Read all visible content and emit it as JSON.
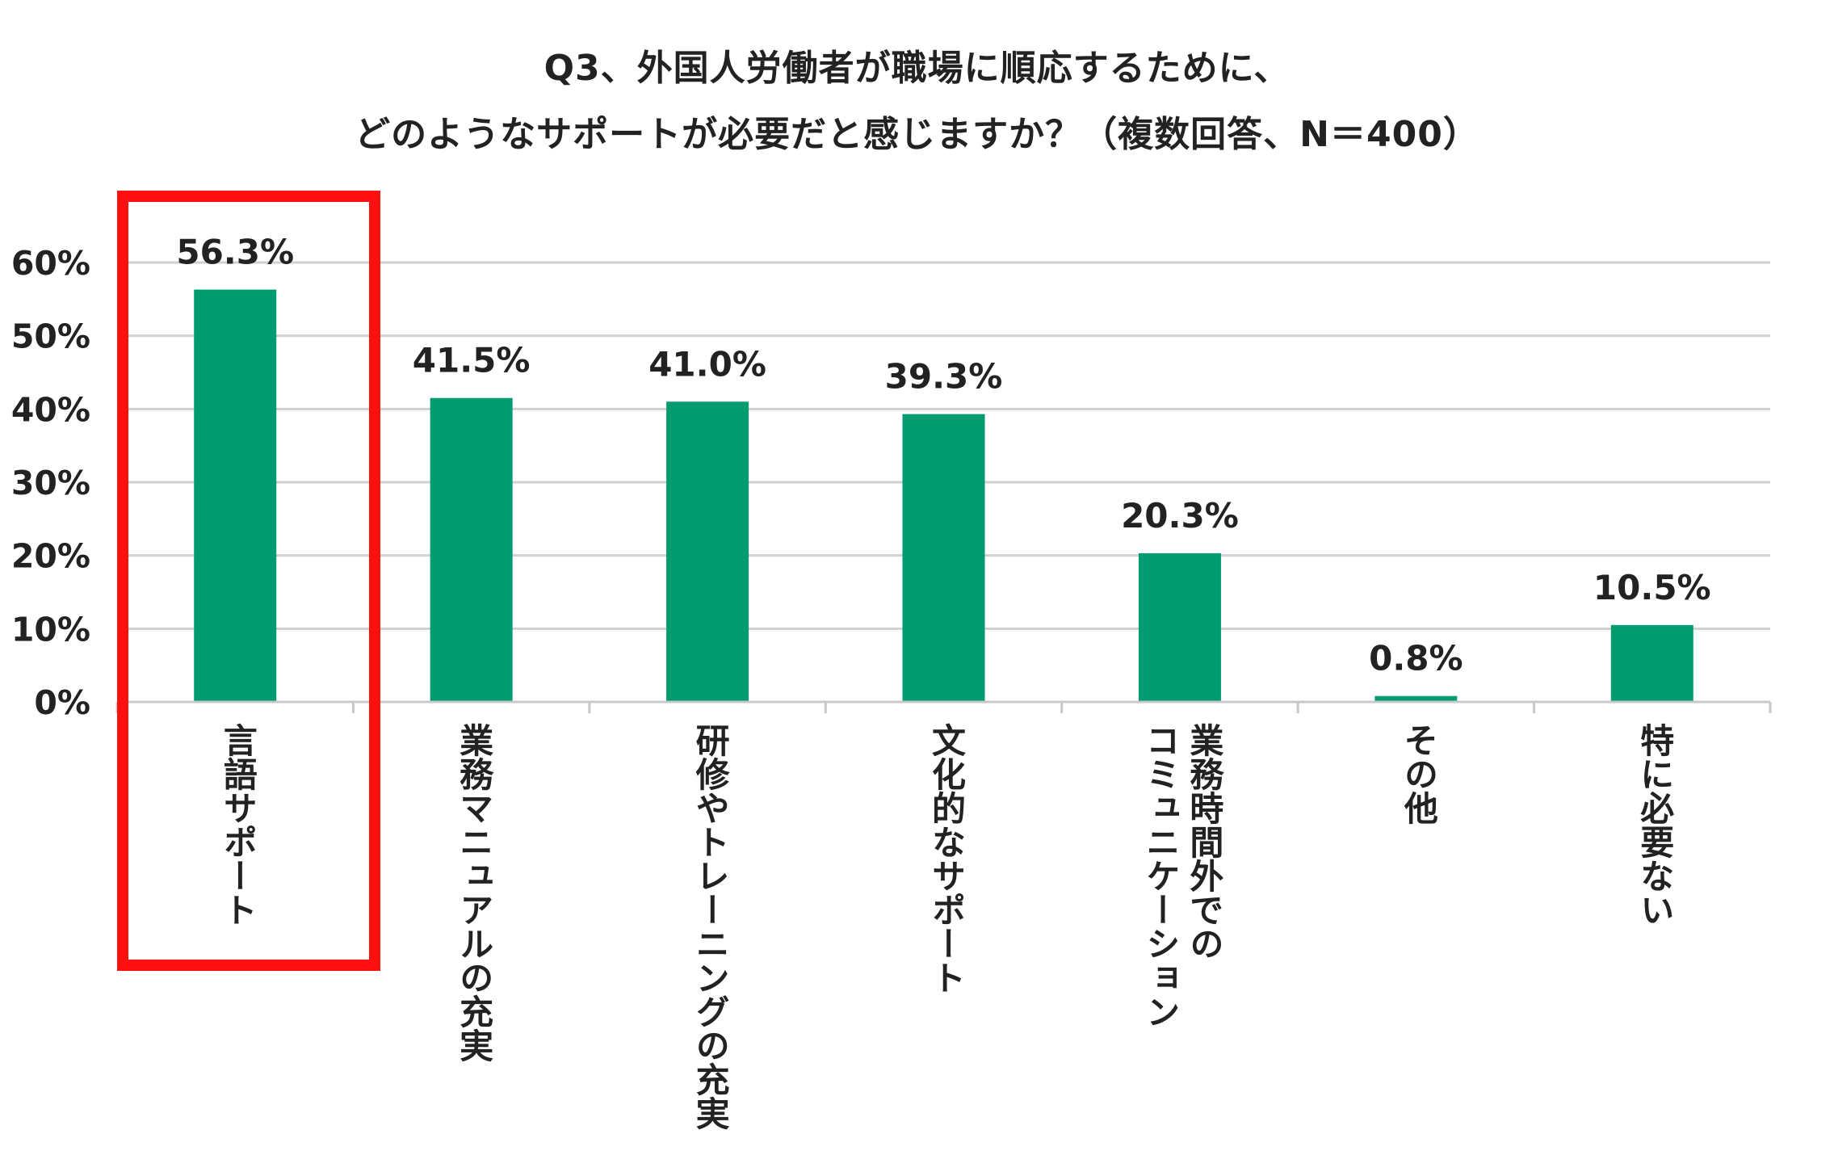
{
  "title_line1": "Q3、外国人労働者が職場に順応するために、",
  "title_line2": "どのようなサポートが必要だと感じますか？（複数回答、N＝400）",
  "chart_data": {
    "type": "bar",
    "title": "Q3、外国人労働者が職場に順応するために、どのようなサポートが必要だと感じますか？（複数回答、N＝400）",
    "categories": [
      "言語サポート",
      "業務マニュアルの充実",
      "研修やトレーニングの充実",
      "文化的なサポート",
      "業務時間外でのコミュニケーション",
      "その他",
      "特に必要ない"
    ],
    "category_columns": [
      [
        "言語サポート"
      ],
      [
        "業務マニュアルの充実"
      ],
      [
        "研修やトレーニングの充実"
      ],
      [
        "文化的なサポート"
      ],
      [
        "業務時間外での",
        "コミュニケーション"
      ],
      [
        "その他"
      ],
      [
        "特に必要ない"
      ]
    ],
    "values": [
      56.3,
      41.5,
      41.0,
      39.3,
      20.3,
      0.8,
      10.5
    ],
    "value_labels": [
      "56.3%",
      "41.5%",
      "41.0%",
      "39.3%",
      "20.3%",
      "0.8%",
      "10.5%"
    ],
    "ylim": [
      0,
      60
    ],
    "yticks": [
      0,
      10,
      20,
      30,
      40,
      50,
      60
    ],
    "ytick_labels": [
      "0%",
      "10%",
      "20%",
      "30%",
      "40%",
      "50%",
      "60%"
    ],
    "grid": true,
    "bar_color": "#009B6E",
    "highlight_color": "#FF1010",
    "highlighted_category": "言語サポート"
  }
}
